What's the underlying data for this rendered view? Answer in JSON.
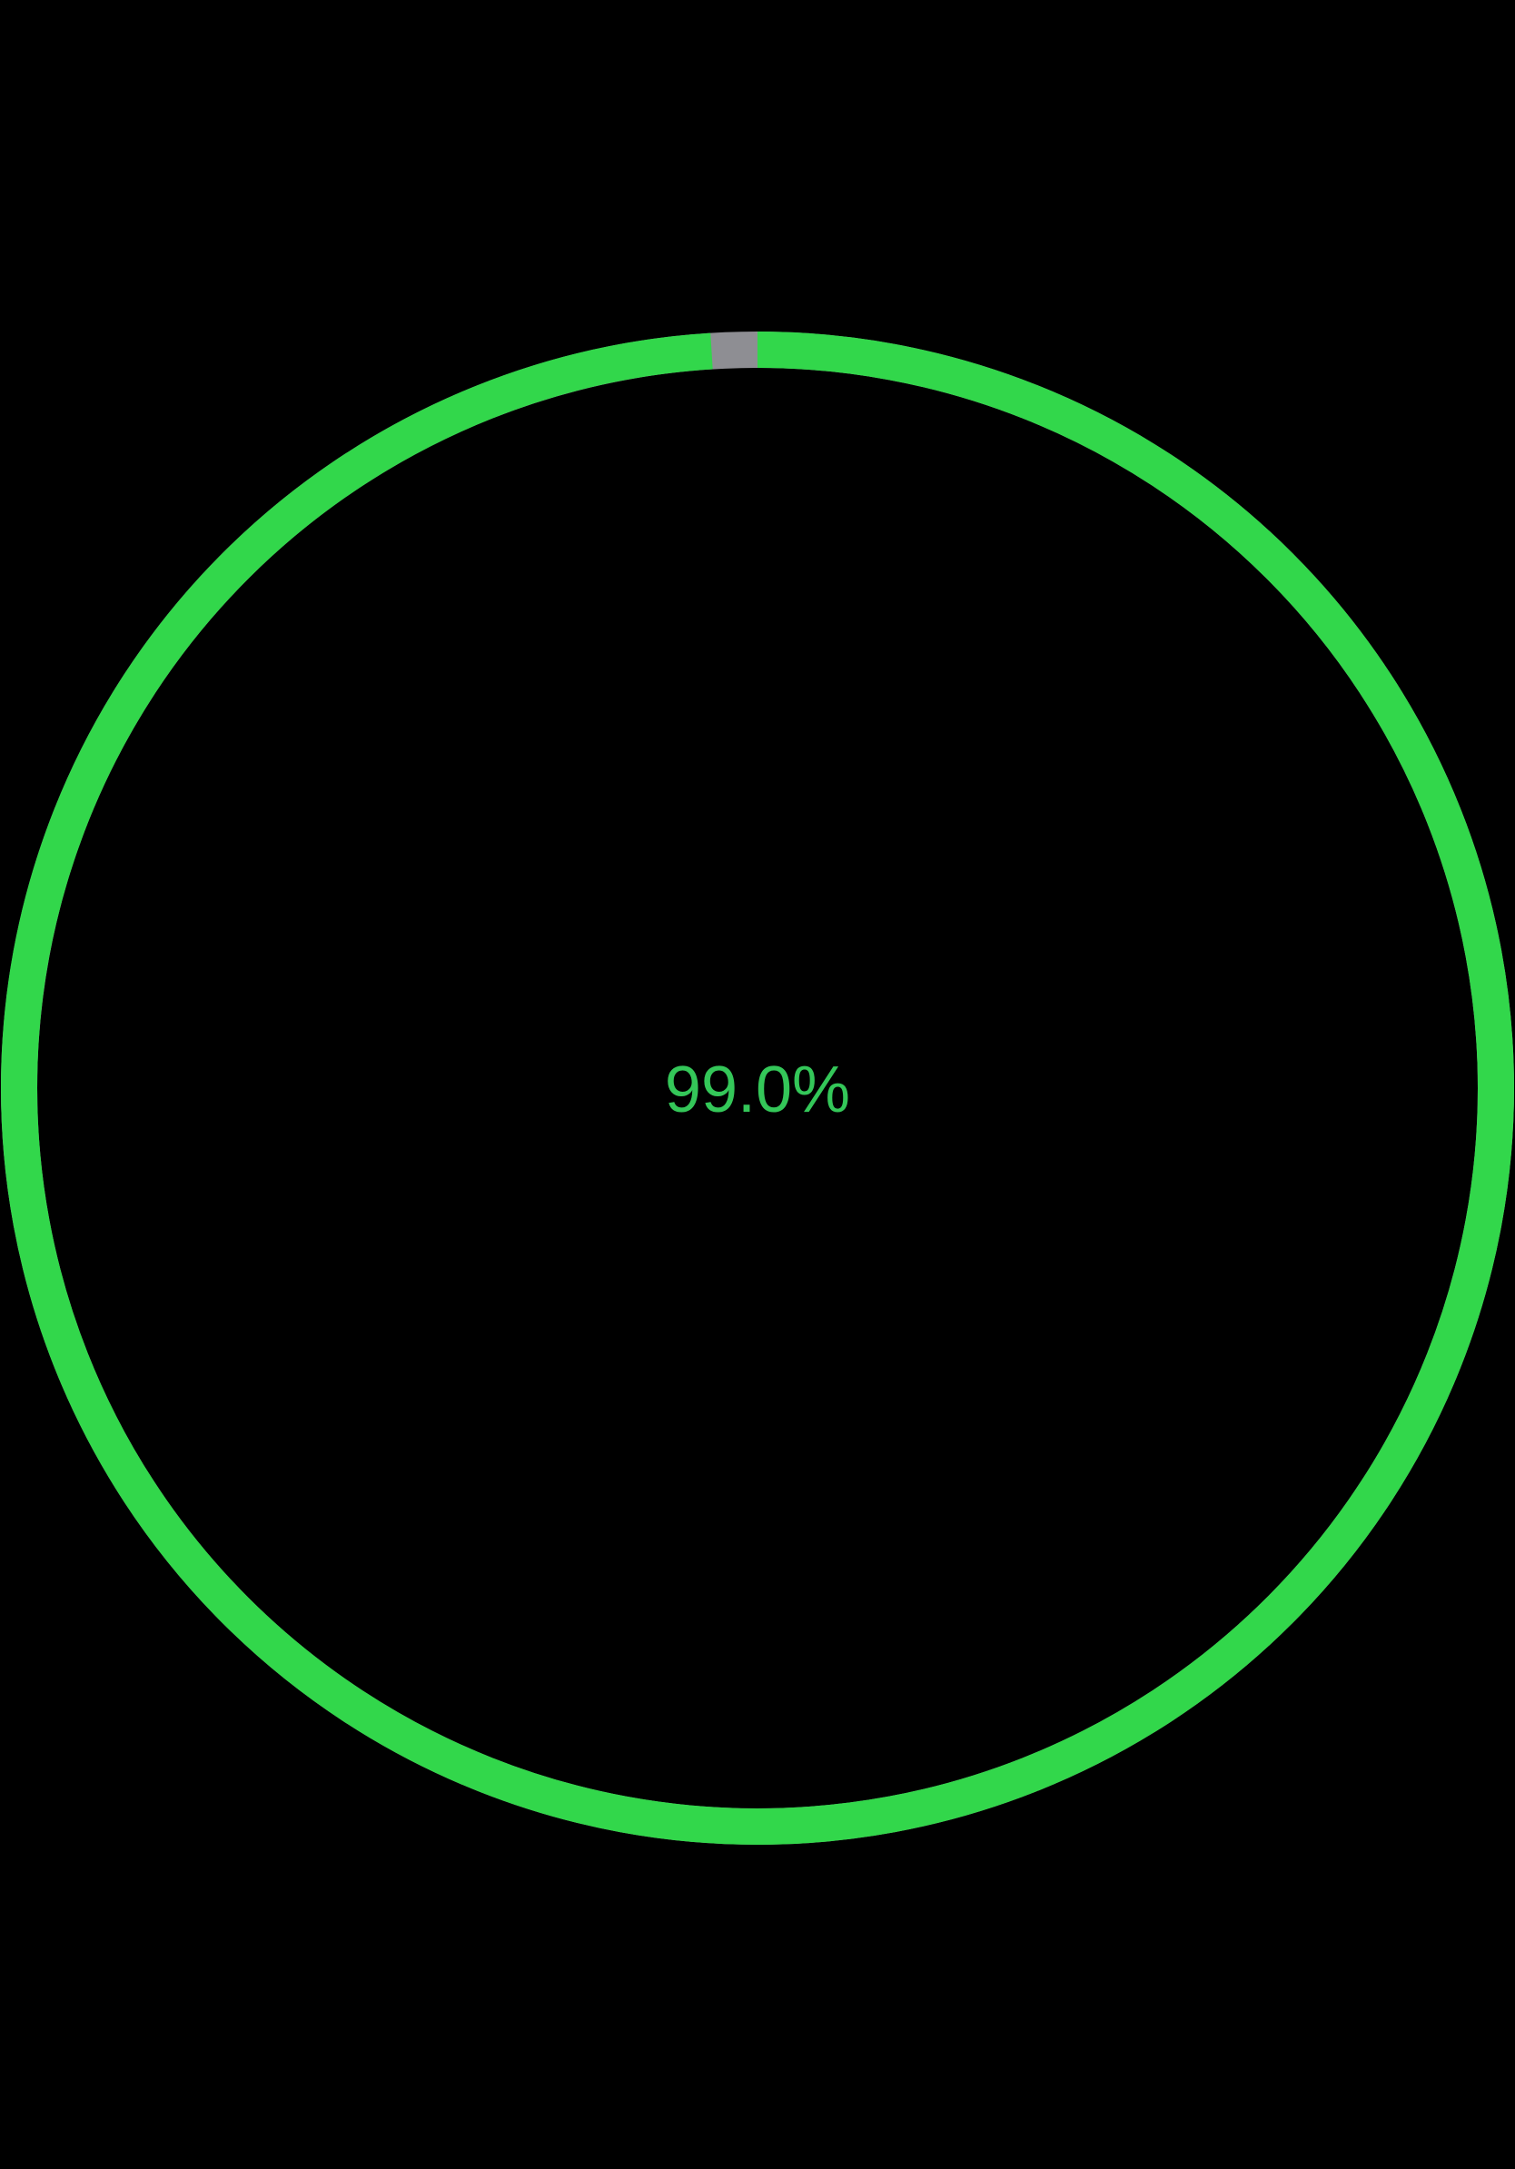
{
  "progress": {
    "label": "99.0%",
    "fraction": 0.99,
    "colors": {
      "progress": "#32D74B",
      "track": "#8E8E93",
      "label": "#34C759",
      "background": "#000000"
    }
  }
}
